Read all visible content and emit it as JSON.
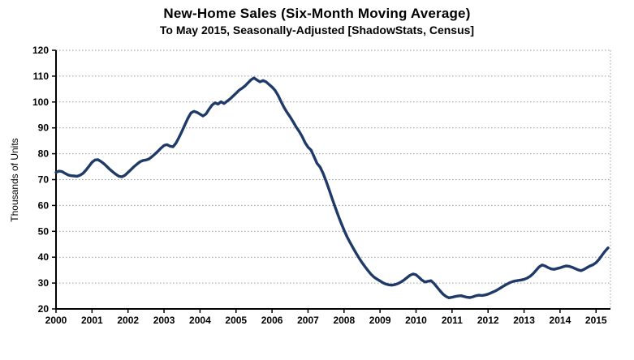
{
  "chart_data": {
    "type": "line",
    "title": "New-Home Sales (Six-Month Moving Average)",
    "subtitle": "To May 2015, Seasonally-Adjusted [ShadowStats, Census]",
    "ylabel": "Thousands of Units",
    "ylim": [
      20,
      120
    ],
    "ytick_values": [
      20,
      30,
      40,
      50,
      60,
      70,
      80,
      90,
      100,
      110,
      120
    ],
    "xtick_labels": [
      "2000",
      "2001",
      "2002",
      "2003",
      "2004",
      "2005",
      "2006",
      "2007",
      "2008",
      "2009",
      "2010",
      "2011",
      "2012",
      "2013",
      "2014",
      "2015"
    ],
    "x_start": "2000-01",
    "x_end": "2015-05",
    "frequency": "monthly",
    "grid": "horizontal dotted",
    "legend": "none",
    "line_color": "#1f3a68",
    "axis_color": "#000000",
    "grid_color": "#999999",
    "series": [
      {
        "name": "New-home sales, six-month moving average (thousands of units)",
        "values": [
          72.8,
          73.3,
          73.1,
          72.4,
          71.8,
          71.5,
          71.4,
          71.3,
          71.7,
          72.4,
          73.7,
          75.2,
          76.7,
          77.6,
          77.7,
          77.0,
          76.1,
          75.0,
          73.9,
          72.9,
          72.0,
          71.3,
          71.1,
          71.7,
          72.8,
          73.9,
          75.0,
          76.0,
          76.9,
          77.4,
          77.6,
          78.0,
          78.9,
          79.9,
          81.0,
          82.2,
          83.2,
          83.5,
          82.9,
          82.7,
          84.1,
          86.3,
          88.7,
          91.3,
          93.8,
          95.8,
          96.4,
          96.0,
          95.3,
          94.6,
          95.4,
          97.2,
          98.8,
          99.7,
          99.2,
          100.1,
          99.4,
          100.3,
          101.2,
          102.3,
          103.4,
          104.5,
          105.3,
          106.2,
          107.4,
          108.6,
          109.3,
          108.5,
          107.8,
          108.3,
          107.8,
          106.8,
          105.8,
          104.5,
          102.6,
          100.2,
          97.9,
          96.0,
          94.3,
          92.4,
          90.4,
          88.7,
          86.7,
          84.3,
          82.5,
          81.4,
          78.9,
          76.3,
          74.9,
          72.5,
          69.5,
          66.2,
          62.8,
          59.5,
          56.3,
          53.3,
          50.5,
          47.9,
          45.7,
          43.6,
          41.6,
          39.7,
          37.9,
          36.3,
          34.8,
          33.4,
          32.3,
          31.5,
          30.8,
          30.1,
          29.6,
          29.3,
          29.2,
          29.4,
          29.8,
          30.4,
          31.2,
          32.1,
          33.0,
          33.5,
          33.2,
          32.2,
          31.1,
          30.4,
          30.7,
          30.9,
          29.8,
          28.4,
          27.0,
          25.7,
          24.8,
          24.3,
          24.5,
          24.8,
          25.0,
          25.1,
          24.8,
          24.5,
          24.4,
          24.7,
          25.1,
          25.3,
          25.2,
          25.4,
          25.7,
          26.2,
          26.7,
          27.3,
          28.0,
          28.7,
          29.4,
          30.0,
          30.5,
          30.8,
          31.0,
          31.2,
          31.4,
          31.9,
          32.6,
          33.6,
          34.9,
          36.2,
          37.0,
          36.6,
          36.0,
          35.5,
          35.3,
          35.6,
          35.9,
          36.3,
          36.6,
          36.5,
          36.1,
          35.6,
          35.1,
          34.8,
          35.3,
          36.0,
          36.6,
          37.1,
          37.9,
          39.2,
          40.8,
          42.3,
          43.6
        ]
      }
    ]
  }
}
